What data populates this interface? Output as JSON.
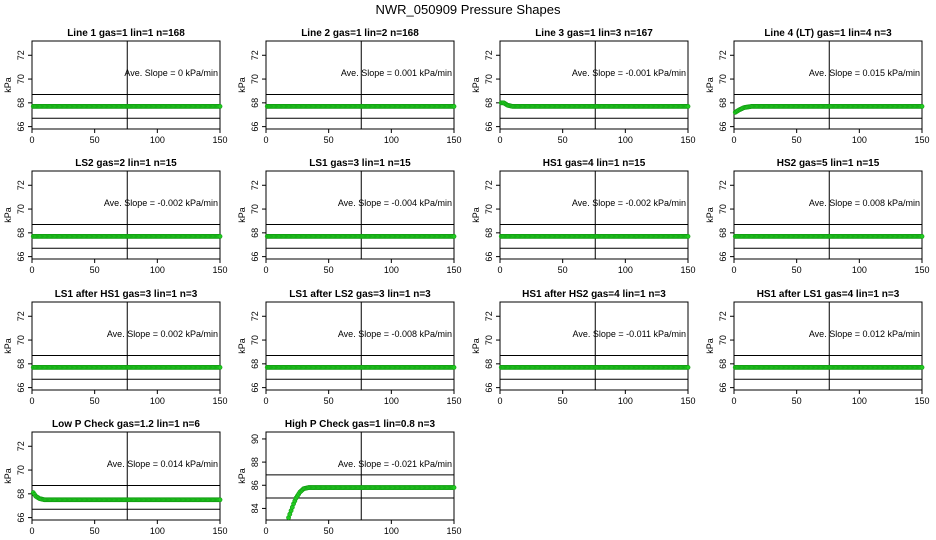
{
  "figure_title": "NWR_050909  Pressure Shapes",
  "colors": {
    "points": "#22cc22",
    "point_edge": "#119911",
    "axes": "#000000"
  },
  "chart_data": [
    {
      "type": "scatter",
      "title": "Line 1 gas=1 lin=1 n=168",
      "ylabel": "kPa",
      "annotation": "Ave. Slope =  0  kPa/min",
      "xlim": [
        0,
        150
      ],
      "ylim": [
        65.8,
        73.2
      ],
      "xticks": [
        0,
        50,
        100,
        150
      ],
      "yticks": [
        66,
        68,
        70,
        72
      ],
      "hlines": [
        66.7,
        68.7
      ],
      "vline": 76,
      "series": [
        {
          "points": [
            [
              1,
              67.7
            ],
            [
              150,
              67.7
            ]
          ]
        }
      ]
    },
    {
      "type": "scatter",
      "title": "Line 2 gas=1 lin=2 n=168",
      "ylabel": "kPa",
      "annotation": "Ave. Slope =  0.001  kPa/min",
      "xlim": [
        0,
        150
      ],
      "ylim": [
        65.8,
        73.2
      ],
      "xticks": [
        0,
        50,
        100,
        150
      ],
      "yticks": [
        66,
        68,
        70,
        72
      ],
      "hlines": [
        66.7,
        68.7
      ],
      "vline": 76,
      "series": [
        {
          "points": [
            [
              1,
              67.7
            ],
            [
              150,
              67.7
            ]
          ]
        }
      ]
    },
    {
      "type": "scatter",
      "title": "Line 3 gas=1 lin=3 n=167",
      "ylabel": "kPa",
      "annotation": "Ave. Slope =  -0.001  kPa/min",
      "xlim": [
        0,
        150
      ],
      "ylim": [
        65.8,
        73.2
      ],
      "xticks": [
        0,
        50,
        100,
        150
      ],
      "yticks": [
        66,
        68,
        70,
        72
      ],
      "hlines": [
        66.7,
        68.7
      ],
      "vline": 76,
      "series": [
        {
          "points": [
            [
              1,
              68.0
            ],
            [
              3,
              68.0
            ],
            [
              6,
              67.8
            ],
            [
              10,
              67.7
            ],
            [
              150,
              67.7
            ]
          ]
        }
      ]
    },
    {
      "type": "scatter",
      "title": "Line 4 (LT) gas=1 lin=4 n=3",
      "ylabel": "kPa",
      "annotation": "Ave. Slope =  0.015  kPa/min",
      "xlim": [
        0,
        150
      ],
      "ylim": [
        65.8,
        73.2
      ],
      "xticks": [
        0,
        50,
        100,
        150
      ],
      "yticks": [
        66,
        68,
        70,
        72
      ],
      "hlines": [
        66.7,
        68.7
      ],
      "vline": 76,
      "series": [
        {
          "points": [
            [
              1,
              67.2
            ],
            [
              4,
              67.4
            ],
            [
              8,
              67.6
            ],
            [
              14,
              67.7
            ],
            [
              150,
              67.7
            ]
          ]
        }
      ]
    },
    {
      "type": "scatter",
      "title": "LS2 gas=2 lin=1 n=15",
      "ylabel": "kPa",
      "annotation": "Ave. Slope =  -0.002  kPa/min",
      "xlim": [
        0,
        150
      ],
      "ylim": [
        65.8,
        73.2
      ],
      "xticks": [
        0,
        50,
        100,
        150
      ],
      "yticks": [
        66,
        68,
        70,
        72
      ],
      "hlines": [
        66.7,
        68.7
      ],
      "vline": 76,
      "series": [
        {
          "points": [
            [
              1,
              67.7
            ],
            [
              150,
              67.7
            ]
          ]
        }
      ]
    },
    {
      "type": "scatter",
      "title": "LS1 gas=3 lin=1 n=15",
      "ylabel": "kPa",
      "annotation": "Ave. Slope =  -0.004  kPa/min",
      "xlim": [
        0,
        150
      ],
      "ylim": [
        65.8,
        73.2
      ],
      "xticks": [
        0,
        50,
        100,
        150
      ],
      "yticks": [
        66,
        68,
        70,
        72
      ],
      "hlines": [
        66.7,
        68.7
      ],
      "vline": 76,
      "series": [
        {
          "points": [
            [
              1,
              67.7
            ],
            [
              150,
              67.7
            ]
          ]
        }
      ]
    },
    {
      "type": "scatter",
      "title": "HS1 gas=4 lin=1 n=15",
      "ylabel": "kPa",
      "annotation": "Ave. Slope =  -0.002  kPa/min",
      "xlim": [
        0,
        150
      ],
      "ylim": [
        65.8,
        73.2
      ],
      "xticks": [
        0,
        50,
        100,
        150
      ],
      "yticks": [
        66,
        68,
        70,
        72
      ],
      "hlines": [
        66.7,
        68.7
      ],
      "vline": 76,
      "series": [
        {
          "points": [
            [
              1,
              67.7
            ],
            [
              150,
              67.7
            ]
          ]
        }
      ]
    },
    {
      "type": "scatter",
      "title": "HS2 gas=5 lin=1 n=15",
      "ylabel": "kPa",
      "annotation": "Ave. Slope =  0.008  kPa/min",
      "xlim": [
        0,
        150
      ],
      "ylim": [
        65.8,
        73.2
      ],
      "xticks": [
        0,
        50,
        100,
        150
      ],
      "yticks": [
        66,
        68,
        70,
        72
      ],
      "hlines": [
        66.7,
        68.7
      ],
      "vline": 76,
      "series": [
        {
          "points": [
            [
              1,
              67.7
            ],
            [
              150,
              67.7
            ]
          ]
        }
      ]
    },
    {
      "type": "scatter",
      "title": "LS1 after HS1 gas=3 lin=1 n=3",
      "ylabel": "kPa",
      "annotation": "Ave. Slope =  0.002  kPa/min",
      "xlim": [
        0,
        150
      ],
      "ylim": [
        65.8,
        73.2
      ],
      "xticks": [
        0,
        50,
        100,
        150
      ],
      "yticks": [
        66,
        68,
        70,
        72
      ],
      "hlines": [
        66.7,
        68.7
      ],
      "vline": 76,
      "series": [
        {
          "points": [
            [
              1,
              67.7
            ],
            [
              150,
              67.7
            ]
          ]
        }
      ]
    },
    {
      "type": "scatter",
      "title": "LS1 after LS2 gas=3 lin=1 n=3",
      "ylabel": "kPa",
      "annotation": "Ave. Slope =  -0.008  kPa/min",
      "xlim": [
        0,
        150
      ],
      "ylim": [
        65.8,
        73.2
      ],
      "xticks": [
        0,
        50,
        100,
        150
      ],
      "yticks": [
        66,
        68,
        70,
        72
      ],
      "hlines": [
        66.7,
        68.7
      ],
      "vline": 76,
      "series": [
        {
          "points": [
            [
              1,
              67.7
            ],
            [
              150,
              67.7
            ]
          ]
        }
      ]
    },
    {
      "type": "scatter",
      "title": "HS1 after HS2 gas=4 lin=1 n=3",
      "ylabel": "kPa",
      "annotation": "Ave. Slope =  -0.011  kPa/min",
      "xlim": [
        0,
        150
      ],
      "ylim": [
        65.8,
        73.2
      ],
      "xticks": [
        0,
        50,
        100,
        150
      ],
      "yticks": [
        66,
        68,
        70,
        72
      ],
      "hlines": [
        66.7,
        68.7
      ],
      "vline": 76,
      "series": [
        {
          "points": [
            [
              1,
              67.7
            ],
            [
              150,
              67.7
            ]
          ]
        }
      ]
    },
    {
      "type": "scatter",
      "title": "HS1 after LS1 gas=4 lin=1 n=3",
      "ylabel": "kPa",
      "annotation": "Ave. Slope =  0.012  kPa/min",
      "xlim": [
        0,
        150
      ],
      "ylim": [
        65.8,
        73.2
      ],
      "xticks": [
        0,
        50,
        100,
        150
      ],
      "yticks": [
        66,
        68,
        70,
        72
      ],
      "hlines": [
        66.7,
        68.7
      ],
      "vline": 76,
      "series": [
        {
          "points": [
            [
              1,
              67.7
            ],
            [
              150,
              67.7
            ]
          ]
        }
      ]
    },
    {
      "type": "scatter",
      "title": "Low P Check gas=1.2 lin=1 n=6",
      "ylabel": "kPa",
      "annotation": "Ave. Slope =  0.014  kPa/min",
      "xlim": [
        0,
        150
      ],
      "ylim": [
        65.8,
        73.2
      ],
      "xticks": [
        0,
        50,
        100,
        150
      ],
      "yticks": [
        66,
        68,
        70,
        72
      ],
      "hlines": [
        66.7,
        68.7
      ],
      "vline": 76,
      "series": [
        {
          "points": [
            [
              1,
              68.1
            ],
            [
              3,
              67.8
            ],
            [
              6,
              67.6
            ],
            [
              10,
              67.5
            ],
            [
              20,
              67.5
            ],
            [
              150,
              67.5
            ]
          ]
        }
      ]
    },
    {
      "type": "scatter",
      "title": "High P Check gas=1 lin=0.8 n=3",
      "ylabel": "kPa",
      "annotation": "Ave. Slope =  -0.021  kPa/min",
      "xlim": [
        0,
        150
      ],
      "ylim": [
        83.0,
        90.6
      ],
      "xticks": [
        0,
        50,
        100,
        150
      ],
      "yticks": [
        84,
        86,
        88,
        90
      ],
      "hlines": [
        84.9,
        86.9
      ],
      "vline": 76,
      "series": [
        {
          "points": [
            [
              18,
              83.2
            ],
            [
              20,
              83.8
            ],
            [
              22,
              84.4
            ],
            [
              24,
              84.9
            ],
            [
              27,
              85.4
            ],
            [
              30,
              85.7
            ],
            [
              34,
              85.8
            ],
            [
              40,
              85.8
            ],
            [
              150,
              85.8
            ]
          ]
        }
      ]
    }
  ]
}
